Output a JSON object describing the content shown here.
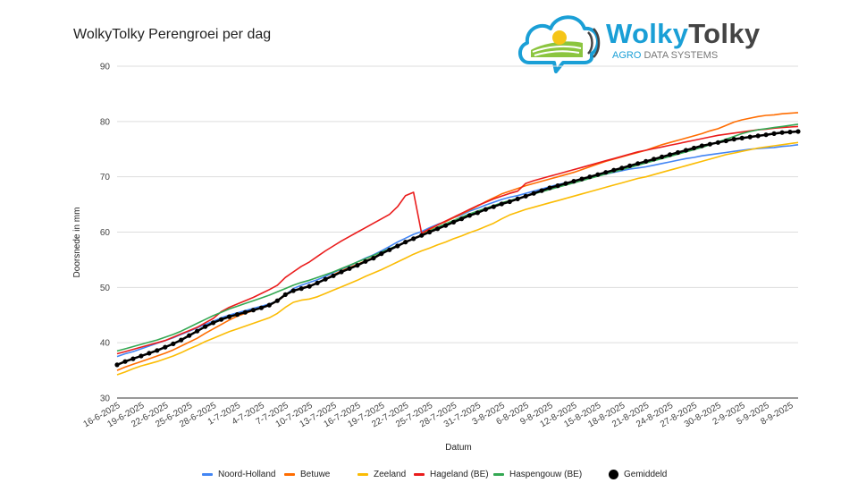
{
  "logo": {
    "name_part1": "Wolky",
    "name_part2": "Tolky",
    "tagline_part1": "AGRO",
    "tagline_part2": "DATA SYSTEMS"
  },
  "colors": {
    "noord_holland": "#4285f4",
    "betuwe": "#ff6d01",
    "zeeland": "#fbbc04",
    "hageland": "#ea1c1c",
    "haspengouw": "#34a853",
    "gemiddeld": "#000000",
    "grid": "#dddddd",
    "logo_blue": "#1a9fd6"
  },
  "chart_data": {
    "type": "line",
    "title": "WolkyTolky Perengroei per dag",
    "xlabel": "Datum",
    "ylabel": "Doorsnede in mm",
    "ylim": [
      30,
      90
    ],
    "yticks": [
      30,
      40,
      50,
      60,
      70,
      80,
      90
    ],
    "grid": true,
    "legend_position": "bottom",
    "x": [
      "16-6-2025",
      "17-6-2025",
      "18-6-2025",
      "19-6-2025",
      "20-6-2025",
      "21-6-2025",
      "22-6-2025",
      "23-6-2025",
      "24-6-2025",
      "25-6-2025",
      "26-6-2025",
      "27-6-2025",
      "28-6-2025",
      "29-6-2025",
      "30-6-2025",
      "1-7-2025",
      "2-7-2025",
      "3-7-2025",
      "4-7-2025",
      "5-7-2025",
      "6-7-2025",
      "7-7-2025",
      "8-7-2025",
      "9-7-2025",
      "10-7-2025",
      "11-7-2025",
      "12-7-2025",
      "13-7-2025",
      "14-7-2025",
      "15-7-2025",
      "16-7-2025",
      "17-7-2025",
      "18-7-2025",
      "19-7-2025",
      "20-7-2025",
      "21-7-2025",
      "22-7-2025",
      "23-7-2025",
      "24-7-2025",
      "25-7-2025",
      "26-7-2025",
      "27-7-2025",
      "28-7-2025",
      "29-7-2025",
      "30-7-2025",
      "31-7-2025",
      "1-8-2025",
      "2-8-2025",
      "3-8-2025",
      "4-8-2025",
      "5-8-2025",
      "6-8-2025",
      "7-8-2025",
      "8-8-2025",
      "9-8-2025",
      "10-8-2025",
      "11-8-2025",
      "12-8-2025",
      "13-8-2025",
      "14-8-2025",
      "15-8-2025",
      "16-8-2025",
      "17-8-2025",
      "18-8-2025",
      "19-8-2025",
      "20-8-2025",
      "21-8-2025",
      "22-8-2025",
      "23-8-2025",
      "24-8-2025",
      "25-8-2025",
      "26-8-2025",
      "27-8-2025",
      "28-8-2025",
      "29-8-2025",
      "30-8-2025",
      "31-8-2025",
      "1-9-2025",
      "2-9-2025",
      "3-9-2025",
      "4-9-2025",
      "5-9-2025",
      "6-9-2025",
      "7-9-2025",
      "8-9-2025",
      "9-9-2025"
    ],
    "xtick_labels": [
      "16-6-2025",
      "19-6-2025",
      "22-6-2025",
      "25-6-2025",
      "28-6-2025",
      "1-7-2025",
      "4-7-2025",
      "7-7-2025",
      "10-7-2025",
      "13-7-2025",
      "16-7-2025",
      "19-7-2025",
      "22-7-2025",
      "25-7-2025",
      "28-7-2025",
      "31-7-2025",
      "3-8-2025",
      "6-8-2025",
      "9-8-2025",
      "12-8-2025",
      "15-8-2025",
      "18-8-2025",
      "21-8-2025",
      "24-8-2025",
      "27-8-2025",
      "30-8-2025",
      "2-9-2025",
      "5-9-2025",
      "8-9-2025"
    ],
    "series": [
      {
        "name": "Noord-Holland",
        "values": [
          37.5,
          38.0,
          38.4,
          38.9,
          39.4,
          39.9,
          40.4,
          40.9,
          41.5,
          42.1,
          42.7,
          43.3,
          43.9,
          44.5,
          45.0,
          45.4,
          45.8,
          46.2,
          46.6,
          47.0,
          47.5,
          48.6,
          49.8,
          50.4,
          50.9,
          51.4,
          52.0,
          52.7,
          53.3,
          53.9,
          54.6,
          55.3,
          55.9,
          56.6,
          57.4,
          58.2,
          58.9,
          59.6,
          60.1,
          60.8,
          61.4,
          61.9,
          62.6,
          63.1,
          63.8,
          64.3,
          64.9,
          65.4,
          65.9,
          66.3,
          66.6,
          67.0,
          67.4,
          67.8,
          68.2,
          68.6,
          68.9,
          69.2,
          69.6,
          69.9,
          70.2,
          70.5,
          70.8,
          71.1,
          71.4,
          71.6,
          71.8,
          72.1,
          72.4,
          72.7,
          73.0,
          73.3,
          73.5,
          73.8,
          74.0,
          74.2,
          74.4,
          74.6,
          74.8,
          75.0,
          75.1,
          75.2,
          75.3,
          75.5,
          75.6,
          75.8
        ]
      },
      {
        "name": "Betuwe",
        "values": [
          35.0,
          35.6,
          36.1,
          36.6,
          37.1,
          37.6,
          38.1,
          38.7,
          39.4,
          40.1,
          40.8,
          41.7,
          42.5,
          43.3,
          44.1,
          44.8,
          45.3,
          45.8,
          46.3,
          46.8,
          47.5,
          48.6,
          49.4,
          49.9,
          50.3,
          50.8,
          51.5,
          52.3,
          53.0,
          53.6,
          54.2,
          54.8,
          55.4,
          56.1,
          56.8,
          57.5,
          58.2,
          58.9,
          59.5,
          60.4,
          61.3,
          61.9,
          62.6,
          63.3,
          64.0,
          64.7,
          65.5,
          66.2,
          66.9,
          67.4,
          67.9,
          68.4,
          68.8,
          69.2,
          69.6,
          70.0,
          70.4,
          70.8,
          71.3,
          71.8,
          72.3,
          72.8,
          73.2,
          73.6,
          74.0,
          74.4,
          74.8,
          75.3,
          75.8,
          76.2,
          76.6,
          77.0,
          77.4,
          77.8,
          78.3,
          78.7,
          79.3,
          79.9,
          80.3,
          80.6,
          80.9,
          81.1,
          81.2,
          81.4,
          81.5,
          81.6
        ]
      },
      {
        "name": "Zeeland",
        "values": [
          34.2,
          34.7,
          35.3,
          35.8,
          36.2,
          36.6,
          37.1,
          37.6,
          38.2,
          38.9,
          39.5,
          40.2,
          40.8,
          41.4,
          42.0,
          42.5,
          43.0,
          43.5,
          44.0,
          44.5,
          45.3,
          46.4,
          47.3,
          47.7,
          47.9,
          48.3,
          48.9,
          49.5,
          50.1,
          50.7,
          51.3,
          52.0,
          52.6,
          53.2,
          53.9,
          54.6,
          55.3,
          56.0,
          56.6,
          57.1,
          57.7,
          58.2,
          58.8,
          59.3,
          59.9,
          60.4,
          61.0,
          61.6,
          62.4,
          63.1,
          63.6,
          64.1,
          64.5,
          64.9,
          65.3,
          65.7,
          66.1,
          66.5,
          66.9,
          67.3,
          67.7,
          68.1,
          68.5,
          68.9,
          69.3,
          69.7,
          70.0,
          70.4,
          70.8,
          71.2,
          71.6,
          72.0,
          72.4,
          72.8,
          73.2,
          73.6,
          74.0,
          74.3,
          74.6,
          74.9,
          75.2,
          75.4,
          75.6,
          75.8,
          76.0,
          76.2
        ]
      },
      {
        "name": "Hageland (BE)",
        "values": [
          38.0,
          38.4,
          38.8,
          39.2,
          39.6,
          40.0,
          40.4,
          41.0,
          41.6,
          42.2,
          42.8,
          43.6,
          44.4,
          45.6,
          46.4,
          47.0,
          47.6,
          48.2,
          48.9,
          49.6,
          50.4,
          51.8,
          52.8,
          53.8,
          54.6,
          55.6,
          56.6,
          57.5,
          58.4,
          59.2,
          60.0,
          60.8,
          61.6,
          62.4,
          63.2,
          64.6,
          66.6,
          67.2,
          59.8,
          60.6,
          61.3,
          62.0,
          62.7,
          63.4,
          64.1,
          64.8,
          65.4,
          66.0,
          66.5,
          67.0,
          67.4,
          68.8,
          69.3,
          69.7,
          70.1,
          70.5,
          70.9,
          71.3,
          71.7,
          72.1,
          72.5,
          72.9,
          73.3,
          73.7,
          74.1,
          74.5,
          74.8,
          75.1,
          75.4,
          75.7,
          76.0,
          76.3,
          76.6,
          76.9,
          77.2,
          77.5,
          77.7,
          77.9,
          78.1,
          78.3,
          78.5,
          78.6,
          78.8,
          78.9,
          79.0,
          79.1
        ]
      },
      {
        "name": "Haspengouw (BE)",
        "values": [
          38.5,
          38.9,
          39.3,
          39.7,
          40.1,
          40.5,
          41.0,
          41.5,
          42.1,
          42.8,
          43.5,
          44.2,
          44.9,
          45.5,
          46.1,
          46.6,
          47.1,
          47.6,
          48.1,
          48.6,
          49.2,
          49.8,
          50.4,
          50.9,
          51.3,
          51.8,
          52.3,
          52.8,
          53.4,
          54.0,
          54.6,
          55.2,
          55.8,
          56.4,
          57.0,
          57.6,
          58.2,
          58.8,
          59.5,
          60.2,
          60.9,
          61.5,
          62.1,
          62.7,
          63.3,
          63.8,
          64.3,
          64.8,
          65.3,
          65.7,
          66.1,
          66.5,
          66.9,
          67.3,
          67.7,
          68.1,
          68.5,
          68.9,
          69.3,
          69.7,
          70.1,
          70.5,
          70.9,
          71.3,
          71.7,
          72.1,
          72.5,
          72.9,
          73.3,
          73.7,
          74.1,
          74.5,
          74.9,
          75.3,
          75.8,
          76.3,
          76.8,
          77.3,
          77.8,
          78.2,
          78.5,
          78.7,
          78.9,
          79.1,
          79.3,
          79.5
        ]
      },
      {
        "name": "Gemiddeld",
        "values": [
          36.0,
          36.6,
          37.1,
          37.6,
          38.1,
          38.6,
          39.2,
          39.8,
          40.5,
          41.3,
          42.1,
          42.9,
          43.6,
          44.2,
          44.7,
          45.1,
          45.5,
          45.9,
          46.3,
          46.8,
          47.6,
          48.7,
          49.4,
          49.8,
          50.2,
          50.8,
          51.5,
          52.1,
          52.8,
          53.4,
          54.0,
          54.7,
          55.3,
          56.1,
          56.8,
          57.5,
          58.2,
          58.8,
          59.4,
          60.0,
          60.6,
          61.2,
          61.8,
          62.4,
          63.0,
          63.5,
          64.1,
          64.6,
          65.1,
          65.5,
          66.0,
          66.5,
          67.0,
          67.5,
          68.0,
          68.4,
          68.8,
          69.2,
          69.6,
          70.0,
          70.4,
          70.8,
          71.2,
          71.6,
          72.0,
          72.4,
          72.8,
          73.2,
          73.6,
          74.0,
          74.4,
          74.8,
          75.2,
          75.6,
          75.9,
          76.2,
          76.5,
          76.8,
          77.0,
          77.2,
          77.4,
          77.6,
          77.8,
          78.0,
          78.1,
          78.2
        ]
      }
    ]
  }
}
